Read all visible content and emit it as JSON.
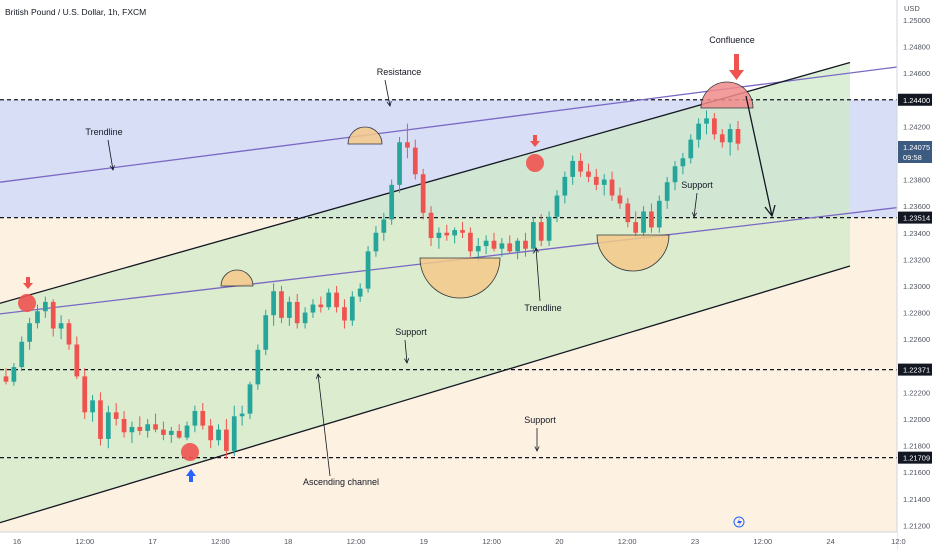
{
  "header": {
    "symbol_title": "British Pound / U.S. Dollar, 1h, FXCM"
  },
  "price_axis": {
    "currency": "USD",
    "current_price_label": "1.24075",
    "countdown_label": "09:58"
  },
  "time_axis": {
    "labels": [
      "16",
      "12:00",
      "17",
      "12:00",
      "18",
      "12:00",
      "19",
      "12:00",
      "20",
      "12:00",
      "23",
      "12:00",
      "24",
      "12:0"
    ]
  },
  "annotations": {
    "confluence": "Confluence",
    "resistance": "Resistance",
    "trendline_upper": "Trendline",
    "trendline_lower": "Trendline",
    "support_upper": "Support",
    "support_mid": "Support",
    "support_low": "Support",
    "ascending_channel": "Ascending channel"
  },
  "colors": {
    "bull_candle": "#26a69a",
    "bear_candle": "#ef5350",
    "trendline": "#7b68c4",
    "channel_line": "#131722",
    "upper_zone": "#c9d3f2",
    "channel_fill": "#cfe9c8",
    "lower_bg": "#fdeedb",
    "arrow_down_marker": "#ef5350",
    "arrow_up_marker": "#2962ff"
  },
  "chart_data": {
    "type": "candlestick",
    "title": "British Pound / U.S. Dollar, 1h, FXCM",
    "y_axis_ticks": [
      1.25,
      1.248,
      1.246,
      1.244,
      1.242,
      1.24,
      1.238,
      1.236,
      1.234,
      1.232,
      1.23,
      1.228,
      1.226,
      1.224,
      1.222,
      1.22,
      1.218,
      1.216,
      1.214,
      1.212
    ],
    "ylim": [
      1.2115,
      1.2515
    ],
    "price_levels": [
      1.244,
      1.23514,
      1.22371,
      1.21709
    ],
    "current_price": 1.24075,
    "trendlines": {
      "upper_trendline": [
        [
          0,
          1.2378
        ],
        [
          932,
          1.2468
        ]
      ],
      "lower_trendline": [
        [
          0,
          1.2279
        ],
        [
          932,
          1.2362
        ]
      ],
      "channel_upper": [
        [
          0,
          1.2287
        ],
        [
          850,
          1.2468
        ]
      ],
      "channel_lower": [
        [
          0,
          1.2122
        ],
        [
          850,
          1.2315
        ]
      ]
    },
    "candles": [
      {
        "o": 1.2232,
        "h": 1.2238,
        "l": 1.2226,
        "c": 1.2228
      },
      {
        "o": 1.2228,
        "h": 1.2242,
        "l": 1.2225,
        "c": 1.2239
      },
      {
        "o": 1.2239,
        "h": 1.2262,
        "l": 1.2236,
        "c": 1.2258
      },
      {
        "o": 1.2258,
        "h": 1.2276,
        "l": 1.2252,
        "c": 1.2272
      },
      {
        "o": 1.2272,
        "h": 1.2286,
        "l": 1.2268,
        "c": 1.2281
      },
      {
        "o": 1.2281,
        "h": 1.2292,
        "l": 1.2276,
        "c": 1.2288
      },
      {
        "o": 1.2288,
        "h": 1.229,
        "l": 1.2262,
        "c": 1.2268
      },
      {
        "o": 1.2268,
        "h": 1.2278,
        "l": 1.226,
        "c": 1.2272
      },
      {
        "o": 1.2272,
        "h": 1.2275,
        "l": 1.2252,
        "c": 1.2256
      },
      {
        "o": 1.2256,
        "h": 1.2262,
        "l": 1.223,
        "c": 1.2232
      },
      {
        "o": 1.2232,
        "h": 1.2238,
        "l": 1.22,
        "c": 1.2205
      },
      {
        "o": 1.2205,
        "h": 1.2218,
        "l": 1.2198,
        "c": 1.2214
      },
      {
        "o": 1.2214,
        "h": 1.222,
        "l": 1.218,
        "c": 1.2185
      },
      {
        "o": 1.2185,
        "h": 1.221,
        "l": 1.2178,
        "c": 1.2205
      },
      {
        "o": 1.2205,
        "h": 1.2212,
        "l": 1.2195,
        "c": 1.22
      },
      {
        "o": 1.22,
        "h": 1.2206,
        "l": 1.2186,
        "c": 1.219
      },
      {
        "o": 1.219,
        "h": 1.2198,
        "l": 1.2182,
        "c": 1.2194
      },
      {
        "o": 1.2194,
        "h": 1.2202,
        "l": 1.2188,
        "c": 1.2191
      },
      {
        "o": 1.2191,
        "h": 1.22,
        "l": 1.2186,
        "c": 1.2196
      },
      {
        "o": 1.2196,
        "h": 1.2204,
        "l": 1.219,
        "c": 1.2192
      },
      {
        "o": 1.2192,
        "h": 1.2198,
        "l": 1.2184,
        "c": 1.2188
      },
      {
        "o": 1.2188,
        "h": 1.2194,
        "l": 1.2182,
        "c": 1.2191
      },
      {
        "o": 1.2191,
        "h": 1.2196,
        "l": 1.2185,
        "c": 1.2186
      },
      {
        "o": 1.2186,
        "h": 1.2198,
        "l": 1.2184,
        "c": 1.2195
      },
      {
        "o": 1.2195,
        "h": 1.221,
        "l": 1.219,
        "c": 1.2206
      },
      {
        "o": 1.2206,
        "h": 1.2212,
        "l": 1.2192,
        "c": 1.2195
      },
      {
        "o": 1.2195,
        "h": 1.22,
        "l": 1.2178,
        "c": 1.2184
      },
      {
        "o": 1.2184,
        "h": 1.2196,
        "l": 1.218,
        "c": 1.2192
      },
      {
        "o": 1.2192,
        "h": 1.22,
        "l": 1.217,
        "c": 1.2176
      },
      {
        "o": 1.2176,
        "h": 1.221,
        "l": 1.2172,
        "c": 1.2202
      },
      {
        "o": 1.2202,
        "h": 1.221,
        "l": 1.2195,
        "c": 1.2204
      },
      {
        "o": 1.2204,
        "h": 1.2228,
        "l": 1.22,
        "c": 1.2226
      },
      {
        "o": 1.2226,
        "h": 1.2256,
        "l": 1.2222,
        "c": 1.2252
      },
      {
        "o": 1.2252,
        "h": 1.2282,
        "l": 1.2248,
        "c": 1.2278
      },
      {
        "o": 1.2278,
        "h": 1.2302,
        "l": 1.227,
        "c": 1.2296
      },
      {
        "o": 1.2296,
        "h": 1.23,
        "l": 1.2272,
        "c": 1.2276
      },
      {
        "o": 1.2276,
        "h": 1.2292,
        "l": 1.227,
        "c": 1.2288
      },
      {
        "o": 1.2288,
        "h": 1.2294,
        "l": 1.2268,
        "c": 1.2272
      },
      {
        "o": 1.2272,
        "h": 1.2284,
        "l": 1.2268,
        "c": 1.228
      },
      {
        "o": 1.228,
        "h": 1.229,
        "l": 1.2276,
        "c": 1.2286
      },
      {
        "o": 1.2286,
        "h": 1.2292,
        "l": 1.228,
        "c": 1.2284
      },
      {
        "o": 1.2284,
        "h": 1.2298,
        "l": 1.2282,
        "c": 1.2295
      },
      {
        "o": 1.2295,
        "h": 1.23,
        "l": 1.228,
        "c": 1.2284
      },
      {
        "o": 1.2284,
        "h": 1.229,
        "l": 1.2268,
        "c": 1.2274
      },
      {
        "o": 1.2274,
        "h": 1.2296,
        "l": 1.227,
        "c": 1.2292
      },
      {
        "o": 1.2292,
        "h": 1.2302,
        "l": 1.2288,
        "c": 1.2298
      },
      {
        "o": 1.2298,
        "h": 1.233,
        "l": 1.2295,
        "c": 1.2326
      },
      {
        "o": 1.2326,
        "h": 1.2345,
        "l": 1.2322,
        "c": 1.234
      },
      {
        "o": 1.234,
        "h": 1.2355,
        "l": 1.2334,
        "c": 1.235
      },
      {
        "o": 1.235,
        "h": 1.238,
        "l": 1.2346,
        "c": 1.2376
      },
      {
        "o": 1.2376,
        "h": 1.2412,
        "l": 1.237,
        "c": 1.2408
      },
      {
        "o": 1.2408,
        "h": 1.2422,
        "l": 1.2396,
        "c": 1.2404
      },
      {
        "o": 1.2404,
        "h": 1.241,
        "l": 1.238,
        "c": 1.2384
      },
      {
        "o": 1.2384,
        "h": 1.2388,
        "l": 1.235,
        "c": 1.2355
      },
      {
        "o": 1.2355,
        "h": 1.236,
        "l": 1.233,
        "c": 1.2336
      },
      {
        "o": 1.2336,
        "h": 1.2344,
        "l": 1.2328,
        "c": 1.234
      },
      {
        "o": 1.234,
        "h": 1.2346,
        "l": 1.2334,
        "c": 1.2338
      },
      {
        "o": 1.2338,
        "h": 1.2344,
        "l": 1.2332,
        "c": 1.2342
      },
      {
        "o": 1.2342,
        "h": 1.2348,
        "l": 1.2336,
        "c": 1.234
      },
      {
        "o": 1.234,
        "h": 1.2344,
        "l": 1.2322,
        "c": 1.2326
      },
      {
        "o": 1.2326,
        "h": 1.2336,
        "l": 1.2318,
        "c": 1.233
      },
      {
        "o": 1.233,
        "h": 1.2338,
        "l": 1.2324,
        "c": 1.2334
      },
      {
        "o": 1.2334,
        "h": 1.234,
        "l": 1.2326,
        "c": 1.2328
      },
      {
        "o": 1.2328,
        "h": 1.2336,
        "l": 1.2322,
        "c": 1.2332
      },
      {
        "o": 1.2332,
        "h": 1.2338,
        "l": 1.2324,
        "c": 1.2326
      },
      {
        "o": 1.2326,
        "h": 1.2336,
        "l": 1.232,
        "c": 1.2334
      },
      {
        "o": 1.2334,
        "h": 1.234,
        "l": 1.2322,
        "c": 1.2328
      },
      {
        "o": 1.2328,
        "h": 1.2352,
        "l": 1.2324,
        "c": 1.2348
      },
      {
        "o": 1.2348,
        "h": 1.2354,
        "l": 1.233,
        "c": 1.2334
      },
      {
        "o": 1.2334,
        "h": 1.2356,
        "l": 1.233,
        "c": 1.2352
      },
      {
        "o": 1.2352,
        "h": 1.2372,
        "l": 1.2348,
        "c": 1.2368
      },
      {
        "o": 1.2368,
        "h": 1.2386,
        "l": 1.2362,
        "c": 1.2382
      },
      {
        "o": 1.2382,
        "h": 1.2398,
        "l": 1.2376,
        "c": 1.2394
      },
      {
        "o": 1.2394,
        "h": 1.24,
        "l": 1.2382,
        "c": 1.2386
      },
      {
        "o": 1.2386,
        "h": 1.2392,
        "l": 1.2378,
        "c": 1.2382
      },
      {
        "o": 1.2382,
        "h": 1.2388,
        "l": 1.2372,
        "c": 1.2376
      },
      {
        "o": 1.2376,
        "h": 1.2384,
        "l": 1.2368,
        "c": 1.238
      },
      {
        "o": 1.238,
        "h": 1.2386,
        "l": 1.2364,
        "c": 1.2368
      },
      {
        "o": 1.2368,
        "h": 1.2374,
        "l": 1.2358,
        "c": 1.2362
      },
      {
        "o": 1.2362,
        "h": 1.2366,
        "l": 1.2344,
        "c": 1.2348
      },
      {
        "o": 1.2348,
        "h": 1.2356,
        "l": 1.2336,
        "c": 1.234
      },
      {
        "o": 1.234,
        "h": 1.236,
        "l": 1.2336,
        "c": 1.2356
      },
      {
        "o": 1.2356,
        "h": 1.2362,
        "l": 1.234,
        "c": 1.2344
      },
      {
        "o": 1.2344,
        "h": 1.2368,
        "l": 1.234,
        "c": 1.2364
      },
      {
        "o": 1.2364,
        "h": 1.2382,
        "l": 1.2358,
        "c": 1.2378
      },
      {
        "o": 1.2378,
        "h": 1.2394,
        "l": 1.2372,
        "c": 1.239
      },
      {
        "o": 1.239,
        "h": 1.24,
        "l": 1.2384,
        "c": 1.2396
      },
      {
        "o": 1.2396,
        "h": 1.2414,
        "l": 1.2392,
        "c": 1.241
      },
      {
        "o": 1.241,
        "h": 1.2426,
        "l": 1.2404,
        "c": 1.2422
      },
      {
        "o": 1.2422,
        "h": 1.2432,
        "l": 1.2414,
        "c": 1.2426
      },
      {
        "o": 1.2426,
        "h": 1.243,
        "l": 1.241,
        "c": 1.2414
      },
      {
        "o": 1.2414,
        "h": 1.2418,
        "l": 1.2404,
        "c": 1.2408
      },
      {
        "o": 1.2408,
        "h": 1.2422,
        "l": 1.2398,
        "c": 1.2418
      },
      {
        "o": 1.2418,
        "h": 1.2424,
        "l": 1.2402,
        "c": 1.2407
      }
    ]
  }
}
